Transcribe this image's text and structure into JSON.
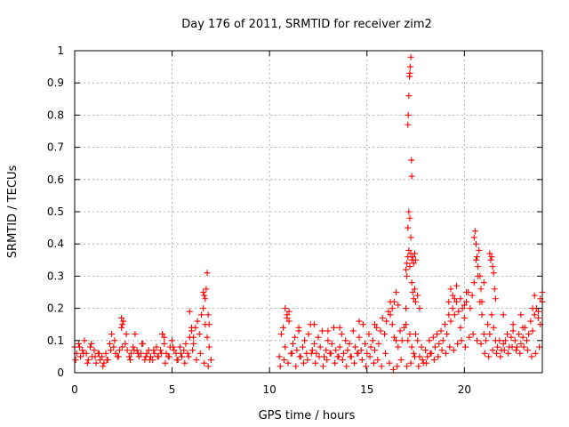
{
  "chart_data": {
    "type": "scatter",
    "title": "Day 176 of 2011, SRMTID for receiver zim2",
    "xlabel": "GPS time / hours",
    "ylabel": "SRMTID / TECUs",
    "xlim": [
      0,
      24
    ],
    "ylim": [
      0,
      1
    ],
    "xticks": [
      0,
      5,
      10,
      15,
      20
    ],
    "yticks": [
      0,
      0.1,
      0.2,
      0.3,
      0.4,
      0.5,
      0.6,
      0.7,
      0.8,
      0.9,
      1
    ],
    "xtick_labels": [
      "0",
      "5",
      "10",
      "15",
      "20"
    ],
    "ytick_labels": [
      "0",
      "0.1",
      "0.2",
      "0.3",
      "0.4",
      "0.5",
      "0.6",
      "0.7",
      "0.8",
      "0.9",
      "1"
    ],
    "grid": true,
    "marker": "+",
    "color": "#ff0000",
    "series": [
      {
        "name": "SRMTID",
        "x": [
          0.0,
          0.1,
          0.2,
          0.3,
          0.4,
          0.5,
          0.6,
          0.7,
          0.8,
          0.9,
          1.0,
          1.1,
          1.2,
          1.3,
          1.4,
          1.5,
          1.6,
          1.7,
          1.8,
          1.9,
          2.0,
          2.1,
          2.2,
          2.3,
          2.4,
          2.5,
          2.6,
          2.7,
          2.8,
          2.9,
          3.0,
          3.1,
          3.2,
          3.3,
          3.4,
          3.5,
          3.6,
          3.7,
          3.8,
          3.9,
          4.0,
          4.1,
          4.2,
          4.3,
          4.4,
          4.5,
          4.6,
          4.7,
          4.8,
          4.9,
          5.0,
          5.1,
          5.2,
          5.3,
          5.4,
          5.5,
          5.6,
          5.7,
          5.8,
          5.9,
          6.0,
          6.1,
          6.2,
          6.3,
          6.4,
          6.5,
          6.6,
          6.7,
          6.8,
          6.9,
          7.0,
          0.05,
          0.25,
          0.45,
          0.65,
          0.85,
          1.05,
          1.25,
          1.45,
          1.65,
          1.85,
          2.05,
          2.25,
          2.45,
          2.65,
          2.85,
          3.05,
          3.25,
          3.45,
          3.65,
          3.85,
          4.05,
          4.25,
          4.45,
          4.65,
          4.85,
          5.05,
          5.25,
          5.45,
          5.65,
          5.85,
          6.05,
          6.25,
          6.45,
          6.65,
          6.85,
          2.4,
          2.45,
          4.5,
          4.6,
          5.9,
          6.0,
          6.1,
          6.6,
          6.65,
          6.7,
          6.75,
          6.8,
          6.85,
          6.9,
          10.5,
          10.6,
          10.7,
          10.8,
          10.9,
          11.0,
          11.1,
          11.2,
          11.3,
          11.4,
          11.5,
          11.6,
          11.7,
          11.8,
          11.9,
          12.0,
          12.1,
          12.2,
          12.3,
          12.4,
          12.5,
          12.6,
          12.7,
          12.8,
          12.9,
          13.0,
          13.1,
          13.2,
          13.3,
          13.4,
          13.5,
          13.6,
          13.7,
          13.8,
          13.9,
          14.0,
          14.1,
          14.2,
          14.3,
          14.4,
          14.5,
          14.6,
          14.7,
          14.8,
          14.9,
          15.0,
          15.1,
          15.2,
          15.3,
          15.4,
          15.5,
          15.6,
          15.7,
          15.8,
          15.9,
          16.0,
          16.1,
          16.2,
          16.3,
          16.4,
          16.5,
          16.6,
          16.7,
          16.8,
          16.9,
          10.55,
          10.75,
          10.95,
          11.15,
          11.35,
          11.55,
          11.75,
          11.95,
          12.15,
          12.35,
          12.55,
          12.75,
          12.95,
          13.15,
          13.35,
          13.55,
          13.75,
          13.95,
          14.15,
          14.35,
          14.55,
          14.75,
          14.95,
          15.15,
          15.35,
          15.55,
          15.75,
          15.95,
          16.15,
          16.35,
          16.55,
          16.75,
          10.8,
          10.9,
          11.0,
          11.5,
          12.3,
          13.0,
          13.6,
          14.6,
          15.4,
          16.2,
          16.3,
          16.4,
          16.5,
          16.6,
          17.0,
          17.05,
          17.1,
          17.12,
          17.15,
          17.18,
          17.2,
          17.22,
          17.25,
          17.28,
          17.3,
          17.1,
          17.15,
          17.2,
          17.25,
          17.0,
          17.05,
          17.1,
          17.15,
          17.2,
          17.25,
          17.3,
          17.35,
          17.4,
          17.45,
          17.5,
          17.3,
          17.35,
          17.4,
          17.45,
          17.5,
          17.6,
          17.7,
          17.0,
          17.1,
          17.2,
          17.3,
          17.4,
          17.5,
          17.6,
          17.7,
          17.8,
          17.9,
          18.0,
          18.1,
          18.2,
          18.3,
          18.4,
          18.5,
          18.6,
          18.7,
          18.8,
          18.9,
          19.0,
          19.1,
          19.2,
          19.3,
          19.4,
          19.5,
          19.6,
          19.7,
          19.8,
          19.9,
          20.0,
          20.1,
          20.2,
          20.3,
          20.4,
          20.5,
          20.6,
          20.7,
          20.8,
          20.9,
          21.0,
          21.1,
          21.2,
          21.3,
          21.4,
          21.5,
          21.6,
          21.7,
          21.8,
          21.9,
          22.0,
          22.1,
          22.2,
          22.3,
          22.4,
          22.5,
          22.6,
          22.7,
          22.8,
          22.9,
          23.0,
          23.1,
          23.2,
          23.3,
          23.4,
          23.5,
          23.6,
          23.7,
          23.8,
          23.9,
          24.0,
          17.05,
          17.25,
          17.45,
          17.65,
          17.85,
          18.05,
          18.25,
          18.45,
          18.65,
          18.85,
          19.05,
          19.25,
          19.45,
          19.65,
          19.85,
          20.05,
          20.25,
          20.45,
          20.65,
          20.85,
          21.05,
          21.25,
          21.45,
          21.65,
          21.85,
          22.05,
          22.25,
          22.45,
          22.65,
          22.85,
          23.05,
          23.25,
          23.45,
          23.65,
          23.85,
          19.2,
          19.3,
          19.4,
          19.5,
          19.6,
          19.8,
          20.0,
          20.1,
          20.5,
          20.55,
          20.6,
          20.65,
          20.7,
          20.75,
          20.8,
          20.85,
          20.9,
          21.0,
          21.3,
          21.35,
          21.4,
          21.45,
          21.5,
          21.55,
          21.6,
          22.0,
          22.5,
          22.9,
          23.0,
          23.5,
          23.6,
          23.8,
          23.9,
          24.0
        ],
        "y": [
          0.08,
          0.06,
          0.09,
          0.05,
          0.07,
          0.1,
          0.06,
          0.04,
          0.08,
          0.05,
          0.07,
          0.03,
          0.06,
          0.04,
          0.05,
          0.03,
          0.06,
          0.04,
          0.09,
          0.12,
          0.08,
          0.06,
          0.05,
          0.07,
          0.14,
          0.16,
          0.09,
          0.07,
          0.05,
          0.06,
          0.08,
          0.12,
          0.07,
          0.05,
          0.06,
          0.09,
          0.04,
          0.06,
          0.07,
          0.05,
          0.04,
          0.06,
          0.08,
          0.05,
          0.07,
          0.12,
          0.09,
          0.06,
          0.05,
          0.08,
          0.1,
          0.07,
          0.06,
          0.04,
          0.08,
          0.05,
          0.07,
          0.09,
          0.06,
          0.11,
          0.13,
          0.09,
          0.14,
          0.16,
          0.12,
          0.18,
          0.2,
          0.15,
          0.11,
          0.08,
          0.04,
          0.04,
          0.08,
          0.06,
          0.03,
          0.09,
          0.05,
          0.06,
          0.02,
          0.04,
          0.07,
          0.1,
          0.05,
          0.08,
          0.12,
          0.04,
          0.07,
          0.06,
          0.09,
          0.05,
          0.04,
          0.07,
          0.05,
          0.06,
          0.03,
          0.05,
          0.08,
          0.04,
          0.06,
          0.03,
          0.05,
          0.07,
          0.04,
          0.06,
          0.03,
          0.02,
          0.17,
          0.15,
          0.12,
          0.11,
          0.19,
          0.14,
          0.11,
          0.25,
          0.24,
          0.23,
          0.26,
          0.31,
          0.18,
          0.15,
          0.05,
          0.12,
          0.14,
          0.08,
          0.17,
          0.19,
          0.06,
          0.09,
          0.11,
          0.07,
          0.13,
          0.05,
          0.08,
          0.1,
          0.06,
          0.12,
          0.15,
          0.07,
          0.09,
          0.06,
          0.11,
          0.08,
          0.13,
          0.05,
          0.07,
          0.1,
          0.06,
          0.09,
          0.14,
          0.07,
          0.05,
          0.08,
          0.12,
          0.06,
          0.1,
          0.07,
          0.09,
          0.05,
          0.13,
          0.08,
          0.06,
          0.11,
          0.07,
          0.15,
          0.09,
          0.06,
          0.12,
          0.08,
          0.1,
          0.07,
          0.14,
          0.09,
          0.13,
          0.17,
          0.12,
          0.16,
          0.19,
          0.22,
          0.15,
          0.11,
          0.1,
          0.08,
          0.13,
          0.1,
          0.14,
          0.02,
          0.04,
          0.03,
          0.06,
          0.02,
          0.05,
          0.03,
          0.04,
          0.06,
          0.03,
          0.05,
          0.02,
          0.04,
          0.06,
          0.03,
          0.05,
          0.04,
          0.02,
          0.05,
          0.03,
          0.06,
          0.04,
          0.02,
          0.05,
          0.03,
          0.04,
          0.02,
          0.06,
          0.03,
          0.01,
          0.02,
          0.04,
          0.2,
          0.18,
          0.16,
          0.14,
          0.15,
          0.13,
          0.14,
          0.16,
          0.15,
          0.18,
          0.2,
          0.22,
          0.25,
          0.21,
          0.2,
          0.3,
          0.77,
          0.8,
          0.86,
          0.92,
          0.93,
          0.95,
          0.98,
          0.66,
          0.61,
          0.45,
          0.5,
          0.48,
          0.42,
          0.32,
          0.34,
          0.36,
          0.38,
          0.33,
          0.37,
          0.35,
          0.36,
          0.34,
          0.37,
          0.35,
          0.28,
          0.25,
          0.23,
          0.26,
          0.22,
          0.24,
          0.2,
          0.15,
          0.1,
          0.12,
          0.08,
          0.06,
          0.12,
          0.1,
          0.05,
          0.08,
          0.03,
          0.07,
          0.05,
          0.1,
          0.06,
          0.11,
          0.08,
          0.12,
          0.09,
          0.13,
          0.1,
          0.15,
          0.12,
          0.18,
          0.16,
          0.2,
          0.18,
          0.22,
          0.19,
          0.14,
          0.2,
          0.17,
          0.22,
          0.25,
          0.2,
          0.24,
          0.28,
          0.35,
          0.3,
          0.22,
          0.18,
          0.12,
          0.1,
          0.15,
          0.12,
          0.18,
          0.14,
          0.1,
          0.08,
          0.1,
          0.07,
          0.09,
          0.1,
          0.12,
          0.08,
          0.11,
          0.13,
          0.1,
          0.08,
          0.12,
          0.09,
          0.11,
          0.14,
          0.1,
          0.12,
          0.16,
          0.13,
          0.18,
          0.2,
          0.17,
          0.15,
          0.22,
          0.02,
          0.03,
          0.05,
          0.02,
          0.04,
          0.03,
          0.06,
          0.04,
          0.05,
          0.07,
          0.06,
          0.08,
          0.07,
          0.09,
          0.1,
          0.08,
          0.11,
          0.12,
          0.1,
          0.09,
          0.06,
          0.05,
          0.07,
          0.06,
          0.05,
          0.07,
          0.06,
          0.08,
          0.07,
          0.06,
          0.08,
          0.07,
          0.05,
          0.06,
          0.08,
          0.22,
          0.26,
          0.24,
          0.23,
          0.27,
          0.23,
          0.21,
          0.25,
          0.42,
          0.44,
          0.4,
          0.36,
          0.33,
          0.38,
          0.3,
          0.26,
          0.22,
          0.28,
          0.37,
          0.35,
          0.36,
          0.33,
          0.31,
          0.26,
          0.23,
          0.18,
          0.15,
          0.18,
          0.14,
          0.2,
          0.24,
          0.19,
          0.23,
          0.25
        ]
      }
    ]
  }
}
